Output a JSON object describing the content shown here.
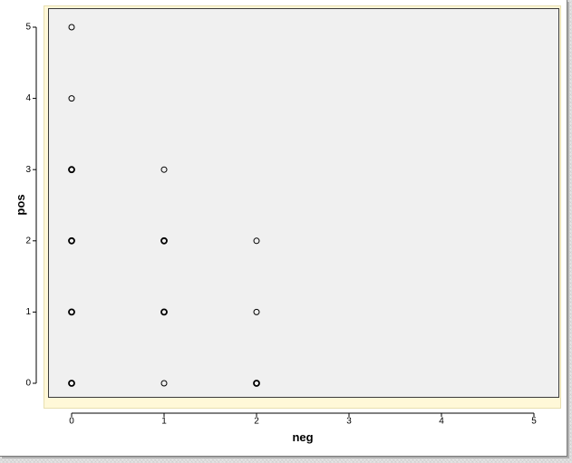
{
  "chart_data": {
    "type": "scatter",
    "xlabel": "neg",
    "ylabel": "pos",
    "xlim": [
      0,
      5
    ],
    "ylim": [
      0,
      5
    ],
    "x_ticks": [
      "0",
      "1",
      "2",
      "3",
      "4",
      "5"
    ],
    "y_ticks": [
      "0",
      "1",
      "2",
      "3",
      "4",
      "5"
    ],
    "grid": false,
    "legend": "none",
    "marker": "open-circle",
    "colors": {
      "plot_background": "#f0f0f0",
      "frame": "#fff8d8",
      "marker": "#000000"
    },
    "points": [
      {
        "x": 0,
        "y": 5,
        "emphasis": "light"
      },
      {
        "x": 0,
        "y": 4,
        "emphasis": "light"
      },
      {
        "x": 0,
        "y": 3,
        "emphasis": "bold"
      },
      {
        "x": 1,
        "y": 3,
        "emphasis": "light"
      },
      {
        "x": 0,
        "y": 2,
        "emphasis": "bold"
      },
      {
        "x": 1,
        "y": 2,
        "emphasis": "bold"
      },
      {
        "x": 2,
        "y": 2,
        "emphasis": "light"
      },
      {
        "x": 0,
        "y": 1,
        "emphasis": "bold"
      },
      {
        "x": 1,
        "y": 1,
        "emphasis": "bold"
      },
      {
        "x": 2,
        "y": 1,
        "emphasis": "light"
      },
      {
        "x": 0,
        "y": 0,
        "emphasis": "bold"
      },
      {
        "x": 1,
        "y": 0,
        "emphasis": "light"
      },
      {
        "x": 2,
        "y": 0,
        "emphasis": "bold"
      }
    ]
  }
}
